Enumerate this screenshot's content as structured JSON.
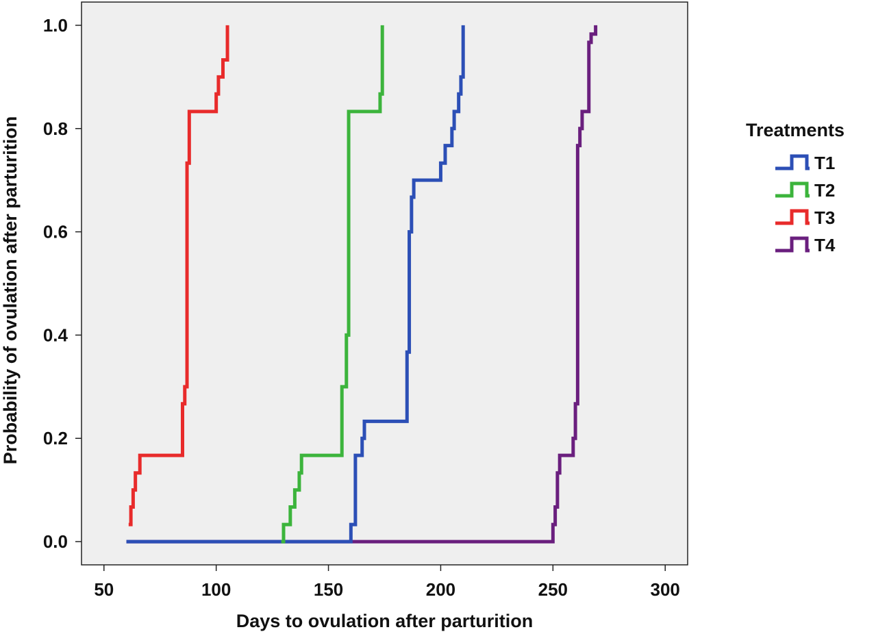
{
  "chart_data": {
    "type": "line",
    "subtype": "cumulative-step",
    "title": "",
    "xlabel": "Days to ovulation after parturition",
    "ylabel": "Probability of ovulation after parturition",
    "xlim": [
      40,
      310
    ],
    "ylim": [
      -0.045,
      1.045
    ],
    "xticks": [
      50,
      100,
      150,
      200,
      250,
      300
    ],
    "yticks": [
      0.0,
      0.2,
      0.4,
      0.6,
      0.8,
      1.0
    ],
    "xtick_labels": [
      "50",
      "100",
      "150",
      "200",
      "250",
      "300"
    ],
    "ytick_labels": [
      "0.0",
      "0.2",
      "0.4",
      "0.6",
      "0.8",
      "1.0"
    ],
    "grid": false,
    "background": "#efefef",
    "legend": {
      "title": "Treatments",
      "position": "right"
    },
    "series": [
      {
        "name": "T1",
        "color": "#2c4fb6",
        "x": [
          60,
          160,
          162,
          165,
          166,
          185,
          186,
          187,
          188,
          200,
          202,
          203,
          205,
          206,
          208,
          209,
          210
        ],
        "y": [
          0.0,
          0.033,
          0.167,
          0.2,
          0.233,
          0.367,
          0.6,
          0.667,
          0.7,
          0.733,
          0.767,
          0.767,
          0.8,
          0.833,
          0.867,
          0.9,
          1.0
        ]
      },
      {
        "name": "T2",
        "color": "#3cb43c",
        "x": [
          129,
          130,
          133,
          135,
          137,
          138,
          156,
          158,
          159,
          173,
          174
        ],
        "y": [
          0.0,
          0.033,
          0.067,
          0.1,
          0.133,
          0.167,
          0.3,
          0.4,
          0.833,
          0.867,
          1.0
        ]
      },
      {
        "name": "T3",
        "color": "#e82b2b",
        "x": [
          61,
          62,
          63,
          64,
          65,
          66,
          85,
          86,
          87,
          88,
          100,
          101,
          103,
          105
        ],
        "y": [
          0.033,
          0.067,
          0.1,
          0.133,
          0.133,
          0.167,
          0.267,
          0.3,
          0.733,
          0.833,
          0.867,
          0.9,
          0.933,
          1.0
        ]
      },
      {
        "name": "T4",
        "color": "#6a1f7e",
        "x": [
          60,
          249,
          250,
          251,
          252,
          253,
          259,
          260,
          261,
          262,
          263,
          265,
          266,
          267,
          268,
          269
        ],
        "y": [
          0.0,
          0.0,
          0.033,
          0.067,
          0.133,
          0.167,
          0.2,
          0.267,
          0.767,
          0.8,
          0.833,
          0.833,
          0.967,
          0.983,
          0.983,
          1.0
        ]
      }
    ]
  }
}
